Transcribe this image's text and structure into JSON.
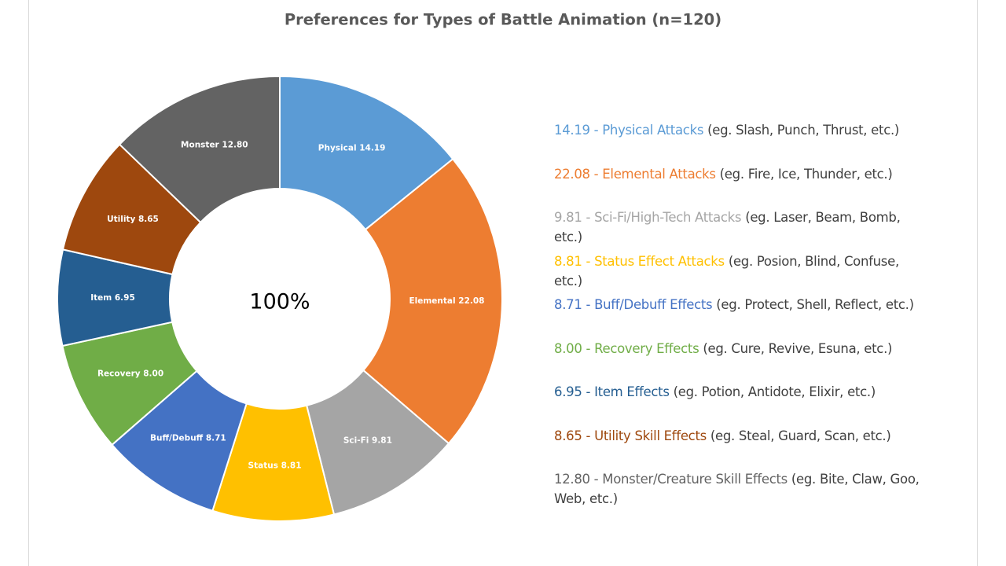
{
  "chart_data": {
    "type": "donut",
    "title": "Preferences for Types of Battle Animation (n=120)",
    "center_label": "100%",
    "categories": [
      "Physical",
      "Elemental",
      "Sci-Fi",
      "Status",
      "Buff/Debuff",
      "Recovery",
      "Item",
      "Utility",
      "Monster"
    ],
    "values": [
      14.19,
      22.08,
      9.81,
      8.81,
      8.71,
      8.0,
      6.95,
      8.65,
      12.8
    ],
    "value_labels": [
      "Physical  14.19",
      "Elemental 22.08",
      "Sci-Fi 9.81",
      "Status 8.81",
      "Buff/Debuff 8.71",
      "Recovery 8.00",
      "Item 6.95",
      "Utility 8.65",
      "Monster 12.80"
    ],
    "colors": [
      "#5b9bd5",
      "#ed7d31",
      "#a5a5a5",
      "#ffc000",
      "#4472c4",
      "#70ad47",
      "#255e91",
      "#9e480e",
      "#636363"
    ],
    "legend": [
      {
        "label": "14.19 - Physical Attacks",
        "note": "(eg. Slash, Punch, Thrust, etc.)"
      },
      {
        "label": "22.08 - Elemental Attacks",
        "note": "(eg. Fire, Ice, Thunder, etc.)"
      },
      {
        "label": "9.81 - Sci-Fi/High-Tech Attacks",
        "note": "(eg. Laser, Beam, Bomb, etc.)"
      },
      {
        "label": "8.81 - Status Effect Attacks",
        "note": "(eg. Posion, Blind, Confuse, etc.)"
      },
      {
        "label": "8.71 - Buff/Debuff Effects",
        "note": "(eg. Protect, Shell, Reflect, etc.)"
      },
      {
        "label": "8.00 - Recovery Effects",
        "note": "(eg. Cure, Revive, Esuna, etc.)"
      },
      {
        "label": "6.95 - Item Effects",
        "note": "(eg. Potion, Antidote, Elixir, etc.)"
      },
      {
        "label": "8.65 - Utility Skill Effects",
        "note": "(eg. Steal, Guard, Scan, etc.)"
      },
      {
        "label": "12.80 - Monster/Creature Skill Effects",
        "note": "(eg. Bite, Claw, Goo, Web, etc.)"
      }
    ]
  }
}
